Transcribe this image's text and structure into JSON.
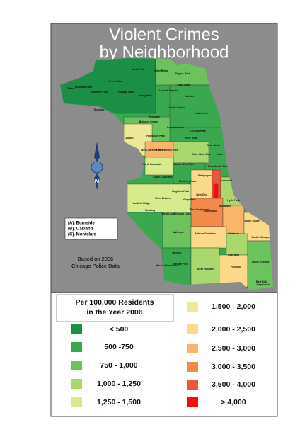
{
  "title": [
    "Violent Crimes",
    "by Neighborhood"
  ],
  "notes": [
    "(A). Burnside",
    "(B). Oakland",
    "(C). Montclare"
  ],
  "source": [
    "Based on 2006",
    "Chicago Police Data"
  ],
  "compass": "N",
  "legend": {
    "title": [
      "Per 100,000 Residents",
      "in the Year 2006"
    ],
    "items": [
      {
        "label": "< 500",
        "color": "#1b8f45"
      },
      {
        "label": "500 -750",
        "color": "#3aa84f"
      },
      {
        "label": "750 - 1,000",
        "color": "#6cc25c"
      },
      {
        "label": "1,000 - 1,250",
        "color": "#a8d86e"
      },
      {
        "label": "1,250 - 1,500",
        "color": "#d6ec8c"
      },
      {
        "label": "1,500 - 2,000",
        "color": "#ebe998"
      },
      {
        "label": "2,000 - 2,500",
        "color": "#fcd98a"
      },
      {
        "label": "2,500 - 3,000",
        "color": "#f9b56a"
      },
      {
        "label": "3,000 - 3,500",
        "color": "#f28a4c"
      },
      {
        "label": "3,500 - 4,000",
        "color": "#e8573a"
      },
      {
        "label": "> 4,000",
        "color": "#ff0a0a"
      }
    ]
  },
  "neighborhoods": [
    "O'Hare",
    "Norwood Park",
    "Jefferson Park",
    "Forest Glen",
    "North Park",
    "West Ridge",
    "Rogers Park",
    "Edge-water",
    "Lincoln Square",
    "Uptown",
    "Portage Park",
    "Irving Park",
    "Dunning",
    "Avondale",
    "North Center",
    "Lake View",
    "Belmont Cragin",
    "Logan Square",
    "Lincoln Park",
    "Austin",
    "Humboldt Park",
    "West Town",
    "Near North",
    "West Garfield Park",
    "East Garfield Park",
    "Near West Side",
    "Loop",
    "North Lawndale",
    "Lower West Side",
    "Near South Side",
    "South Lawndale",
    "Bridge-port",
    "McKinley Park",
    "Brighton Park",
    "Garfield Ridge",
    "Clearing",
    "West Elsdon",
    "Gage Park",
    "New City",
    "Kenwood",
    "Hyde Park",
    "Woodlawn",
    "South Shore",
    "West Lawn",
    "Chicago Lawn",
    "West Englewood",
    "Englewood",
    "Ashburn",
    "Auburn Gresham",
    "Chatham",
    "South Chicago",
    "Beverly",
    "Roseland",
    "Morgan Park",
    "Mount Greenwood",
    "West Pullman",
    "Pullman",
    "South Deering",
    "East Side",
    "Hegewisch"
  ]
}
